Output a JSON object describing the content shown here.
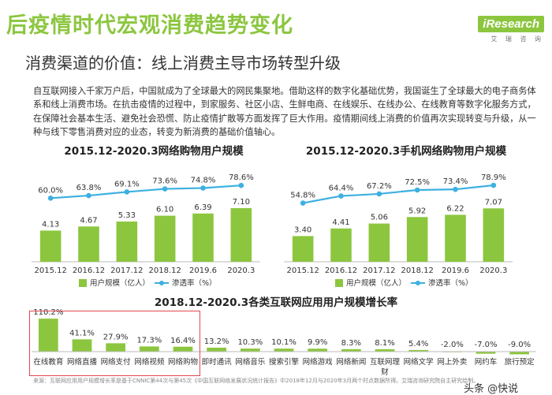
{
  "header": {
    "title": "后疫情时代宏观消费趋势变化",
    "subtitle": "消费渠道的价值：线上消费主导市场转型升级",
    "brand_logo": "iResearch",
    "brand_sub": "艾 瑞 咨 询"
  },
  "paragraph": "自互联网接入千家万户后，中国就成为了全球最大的网民集聚地。借助这样的数字化基础优势，我国诞生了全球最大的电子商务体系和线上消费市场。在抗击疫情的过程中，到家服务、社区小店、生鲜电商、在线娱乐、在线办公、在线教育等数字化服务方式，在保障社会基本生活、避免社会恐慌、防止疫情扩散等方面发挥了巨大作用。疫情期间线上消费的价值再次实现转变与升级，从一种与线下零售消费对应的业态，转变为新消费的基础价值轴心。",
  "colors": {
    "bar": "#8cc63f",
    "line": "#3cb0e0",
    "title": "#8cc63f",
    "highlight": "#e0474c"
  },
  "chart_data": [
    {
      "type": "bar",
      "title": "2015.12-2020.3网络购物用户规模",
      "categories": [
        "2015.12",
        "2016.12",
        "2017.12",
        "2018.12",
        "2019.6",
        "2020.3"
      ],
      "series": [
        {
          "name": "用户规模（亿人）",
          "type": "bar",
          "values": [
            4.13,
            4.67,
            5.33,
            6.1,
            6.39,
            7.1
          ],
          "labels": [
            "4.13",
            "4.67",
            "5.33",
            "6.10",
            "6.39",
            "7.10"
          ]
        },
        {
          "name": "渗透率（%）",
          "type": "line",
          "values": [
            60.0,
            63.8,
            69.1,
            73.6,
            74.8,
            78.6
          ],
          "labels": [
            "60.0%",
            "63.8%",
            "69.1%",
            "73.6%",
            "74.8%",
            "78.6%"
          ]
        }
      ]
    },
    {
      "type": "bar",
      "title": "2015.12-2020.3手机网络购物用户规模",
      "categories": [
        "2015.12",
        "2016.12",
        "2017.12",
        "2018.12",
        "2019.6",
        "2020.3"
      ],
      "series": [
        {
          "name": "用户规模（亿人）",
          "type": "bar",
          "values": [
            3.4,
            4.41,
            5.06,
            5.92,
            6.22,
            7.07
          ],
          "labels": [
            "3.40",
            "4.41",
            "5.06",
            "5.92",
            "6.22",
            "7.07"
          ]
        },
        {
          "name": "渗透率（%）",
          "type": "line",
          "values": [
            54.8,
            64.4,
            67.2,
            72.5,
            73.4,
            78.9
          ],
          "labels": [
            "54.8%",
            "64.4%",
            "67.2%",
            "72.5%",
            "73.4%",
            "78.9%"
          ]
        }
      ]
    },
    {
      "type": "bar",
      "title": "2018.12-2020.3各类互联网应用用户规模增长率",
      "categories": [
        "在线教育",
        "网络直播",
        "网络支付",
        "网络视频",
        "网络购物",
        "即时通讯",
        "网络音乐",
        "搜索引擎",
        "网络游戏",
        "网络新闻",
        "互联网理财",
        "网络文学",
        "网上外卖",
        "网约车",
        "旅行预定"
      ],
      "values": [
        110.2,
        41.1,
        27.9,
        17.3,
        16.4,
        13.2,
        10.3,
        10.1,
        9.9,
        8.3,
        8.1,
        5.4,
        -2.0,
        -7.0,
        -9.0
      ],
      "labels": [
        "110.2%",
        "41.1%",
        "27.9%",
        "17.3%",
        "16.4%",
        "13.2%",
        "10.3%",
        "10.1%",
        "9.9%",
        "8.3%",
        "8.1%",
        "5.4%",
        "-2.0%",
        "-7.0%",
        "-9.0%"
      ],
      "highlight_count": 5
    }
  ],
  "footer": {
    "source": "来源：互联网应用用户规模增长率是基于CNNIC第44次与第45次《中国互联网络发展状况统计报告》中2018年12月与2020年3月两个时点数据所得。艾瑞咨询研究院自主研究绘制。",
    "watermark": "头条 @快说"
  }
}
